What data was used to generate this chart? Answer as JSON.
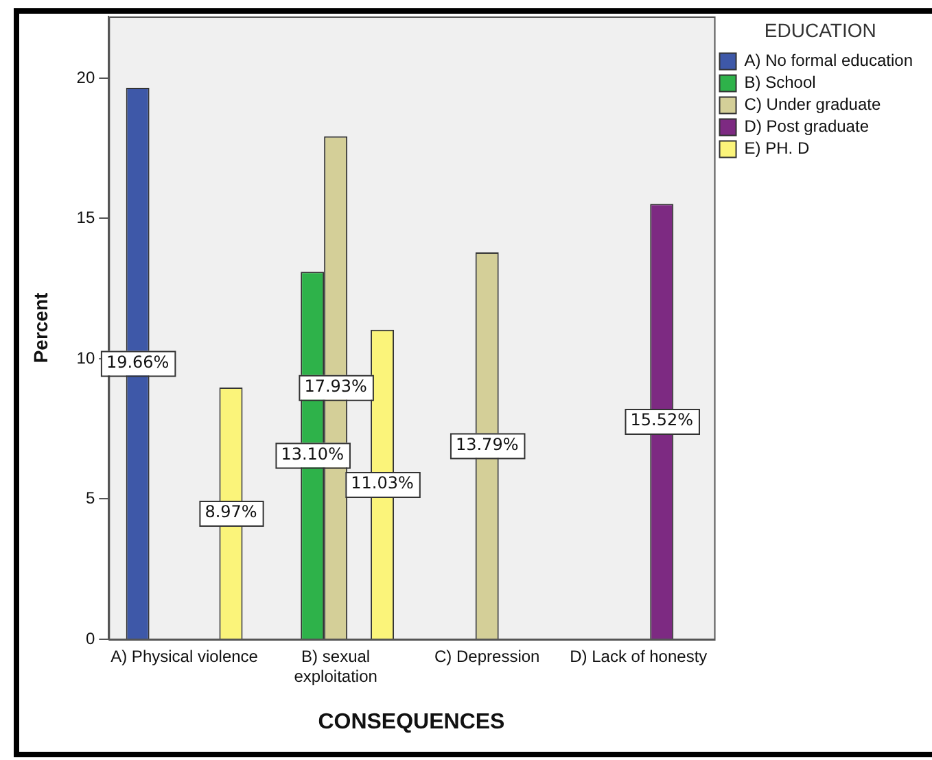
{
  "chart_data": {
    "type": "bar",
    "xlabel": "CONSEQUENCES",
    "ylabel": "Percent",
    "legend_title": "EDUCATION",
    "legend": "top right",
    "grid": false,
    "categories": [
      "A) Physical violence",
      "B) sexual exploitation",
      "C) Depression",
      "D) Lack of honesty"
    ],
    "series": [
      {
        "name": "A) No formal education",
        "color": "#3e58a8",
        "values": [
          19.66,
          null,
          null,
          null
        ],
        "value_labels": [
          "19.66%",
          null,
          null,
          null
        ]
      },
      {
        "name": "B) School",
        "color": "#2eb24a",
        "values": [
          null,
          13.1,
          null,
          null
        ],
        "value_labels": [
          null,
          "13.10%",
          null,
          null
        ]
      },
      {
        "name": "C) Under graduate",
        "color": "#d4cf98",
        "values": [
          null,
          17.93,
          13.79,
          null
        ],
        "value_labels": [
          null,
          "17.93%",
          "13.79%",
          null
        ]
      },
      {
        "name": "D) Post graduate",
        "color": "#7d2a82",
        "values": [
          null,
          null,
          null,
          15.52
        ],
        "value_labels": [
          null,
          null,
          null,
          "15.52%"
        ]
      },
      {
        "name": "E) PH. D",
        "color": "#fbf47a",
        "values": [
          8.97,
          11.03,
          null,
          null
        ],
        "value_labels": [
          "8.97%",
          "11.03%",
          null,
          null
        ]
      }
    ],
    "ylim": [
      0,
      22.2
    ],
    "yticks": [
      0,
      5,
      10,
      15,
      20
    ]
  }
}
